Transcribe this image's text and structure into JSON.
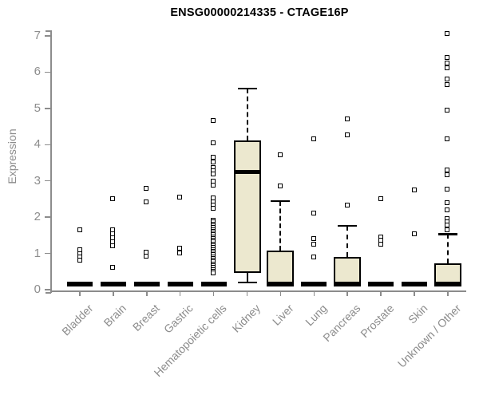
{
  "chart_data": {
    "type": "boxplot",
    "title": "ENSG00000214335 - CTAGE16P",
    "y_axis": {
      "label": "Expression",
      "ticks": [
        0,
        1,
        2,
        3,
        4,
        5,
        6,
        7
      ],
      "range": [
        0,
        7.1
      ]
    },
    "x_axis": {
      "categories": [
        "Bladder",
        "Brain",
        "Breast",
        "Gastric",
        "Hematopoietic cells",
        "Kidney",
        "Liver",
        "Lung",
        "Pancreas",
        "Prostate",
        "Skin",
        "Unknown / Other"
      ]
    },
    "grid": false,
    "legend": false,
    "boxes": [
      {
        "category": "Bladder",
        "q1": 0,
        "median": 0,
        "q3": 0,
        "whisker_low": 0,
        "whisker_high": 0,
        "outliers": [
          1.64,
          1.09,
          0.99,
          0.9,
          0.8
        ]
      },
      {
        "category": "Brain",
        "q1": 0,
        "median": 0,
        "q3": 0,
        "whisker_low": 0,
        "whisker_high": 0,
        "outliers": [
          2.5,
          1.64,
          1.52,
          1.41,
          1.3,
          1.21,
          0.6
        ]
      },
      {
        "category": "Breast",
        "q1": 0,
        "median": 0,
        "q3": 0,
        "whisker_low": 0,
        "whisker_high": 0,
        "outliers": [
          2.78,
          2.4,
          1.02,
          0.92
        ]
      },
      {
        "category": "Gastric",
        "q1": 0,
        "median": 0,
        "q3": 0,
        "whisker_low": 0,
        "whisker_high": 0,
        "outliers": [
          2.54,
          1.13,
          1.0
        ]
      },
      {
        "category": "Hematopoietic cells",
        "q1": 0,
        "median": 0,
        "q3": 0,
        "whisker_low": 0,
        "whisker_high": 0,
        "outliers": [
          4.65,
          4.03,
          3.64,
          3.51,
          3.35,
          3.26,
          3.17,
          2.99,
          2.88,
          2.52,
          2.41,
          2.33,
          2.23,
          1.9,
          1.85,
          1.8,
          1.75,
          1.7,
          1.65,
          1.6,
          1.55,
          1.5,
          1.45,
          1.4,
          1.35,
          1.3,
          1.25,
          1.2,
          1.15,
          1.1,
          1.05,
          1.0,
          0.95,
          0.9,
          0.85,
          0.8,
          0.75,
          0.7,
          0.65,
          0.6,
          0.55,
          0.5,
          0.45
        ]
      },
      {
        "category": "Kidney",
        "q1": 0.46,
        "median": 3.24,
        "q3": 4.12,
        "whisker_low": 0.2,
        "whisker_high": 5.55,
        "outliers": []
      },
      {
        "category": "Liver",
        "q1": 0,
        "median": 0.05,
        "q3": 1.08,
        "whisker_low": 0,
        "whisker_high": 2.44,
        "outliers": [
          3.7,
          2.86
        ]
      },
      {
        "category": "Lung",
        "q1": 0,
        "median": 0,
        "q3": 0,
        "whisker_low": 0,
        "whisker_high": 0,
        "outliers": [
          4.15,
          2.1,
          1.4,
          1.25,
          0.9
        ]
      },
      {
        "category": "Pancreas",
        "q1": 0,
        "median": 0.05,
        "q3": 0.9,
        "whisker_low": 0,
        "whisker_high": 1.76,
        "outliers": [
          4.7,
          4.27,
          2.32
        ]
      },
      {
        "category": "Prostate",
        "q1": 0,
        "median": 0,
        "q3": 0,
        "whisker_low": 0,
        "whisker_high": 0,
        "outliers": [
          2.5,
          1.45,
          1.35,
          1.25
        ]
      },
      {
        "category": "Skin",
        "q1": 0,
        "median": 0,
        "q3": 0,
        "whisker_low": 0,
        "whisker_high": 0,
        "outliers": [
          2.74,
          1.53
        ]
      },
      {
        "category": "Unknown / Other",
        "q1": 0,
        "median": 0.05,
        "q3": 0.72,
        "whisker_low": 0,
        "whisker_high": 1.53,
        "outliers": [
          7.05,
          6.4,
          6.25,
          6.1,
          5.79,
          5.64,
          4.94,
          4.15,
          3.28,
          3.15,
          2.76,
          2.38,
          2.18,
          1.95,
          1.87,
          1.77,
          1.64
        ]
      }
    ],
    "colors": {
      "box_fill": "#ece8cf",
      "box_stroke": "#000000",
      "axis": "#8c8c8c",
      "title": "#000000",
      "background": "#ffffff"
    }
  }
}
